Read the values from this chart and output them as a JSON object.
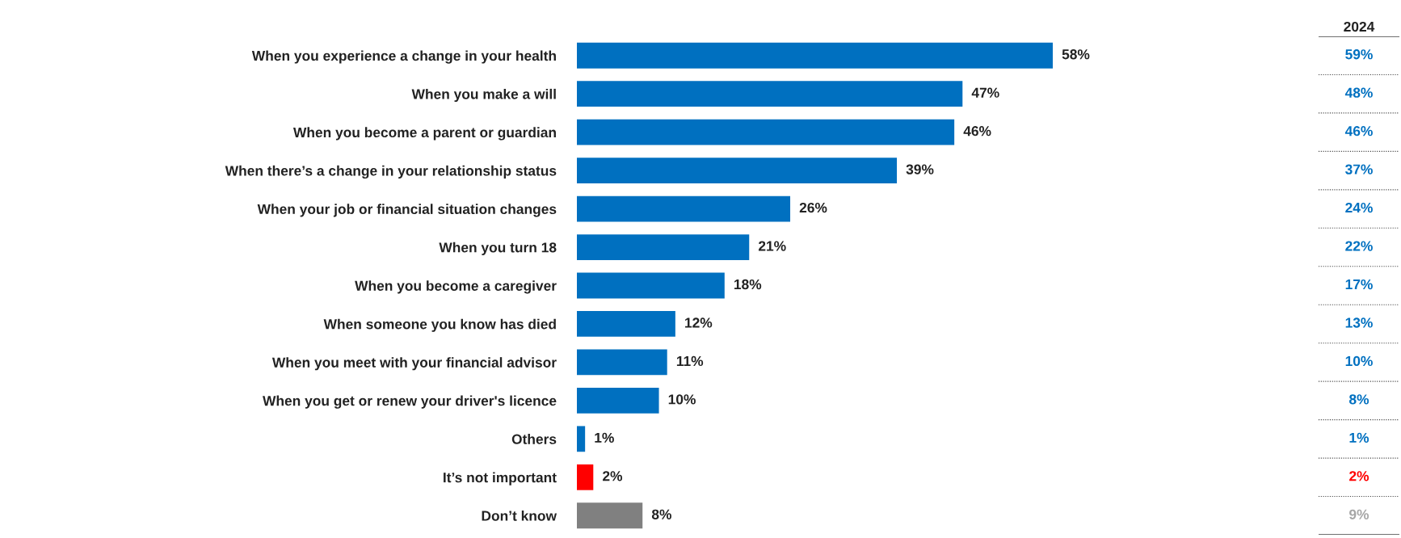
{
  "chart_data": [
    {
      "type": "bar",
      "orientation": "horizontal",
      "categories": [
        "When you experience a change in your health",
        "When you make a will",
        "When you become a parent or guardian",
        "When there’s a change in your relationship status",
        "When your job or financial situation changes",
        "When you turn 18",
        "When you become a caregiver",
        "When someone you know has died",
        "When you meet with your financial advisor",
        "When you get or renew your driver's licence",
        "Others",
        "It’s not important",
        "Don’t know"
      ],
      "values": [
        58,
        47,
        46,
        39,
        26,
        21,
        18,
        12,
        11,
        10,
        1,
        2,
        8
      ],
      "value_labels": [
        "58%",
        "47%",
        "46%",
        "39%",
        "26%",
        "21%",
        "18%",
        "12%",
        "11%",
        "10%",
        "1%",
        "2%",
        "8%"
      ],
      "colors": [
        "#0070c0",
        "#0070c0",
        "#0070c0",
        "#0070c0",
        "#0070c0",
        "#0070c0",
        "#0070c0",
        "#0070c0",
        "#0070c0",
        "#0070c0",
        "#0070c0",
        "#ff0000",
        "#808080"
      ]
    },
    {
      "type": "other",
      "title": "2024",
      "annotations": [
        "59%",
        "48%",
        "46%",
        "37%",
        "24%",
        "22%",
        "17%",
        "13%",
        "10%",
        "8%",
        "1%",
        "2%",
        "9%"
      ],
      "colors": [
        "#0070c0",
        "#0070c0",
        "#0070c0",
        "#0070c0",
        "#0070c0",
        "#0070c0",
        "#0070c0",
        "#0070c0",
        "#0070c0",
        "#0070c0",
        "#0070c0",
        "#ff0000",
        "#a6a6a6"
      ]
    }
  ]
}
